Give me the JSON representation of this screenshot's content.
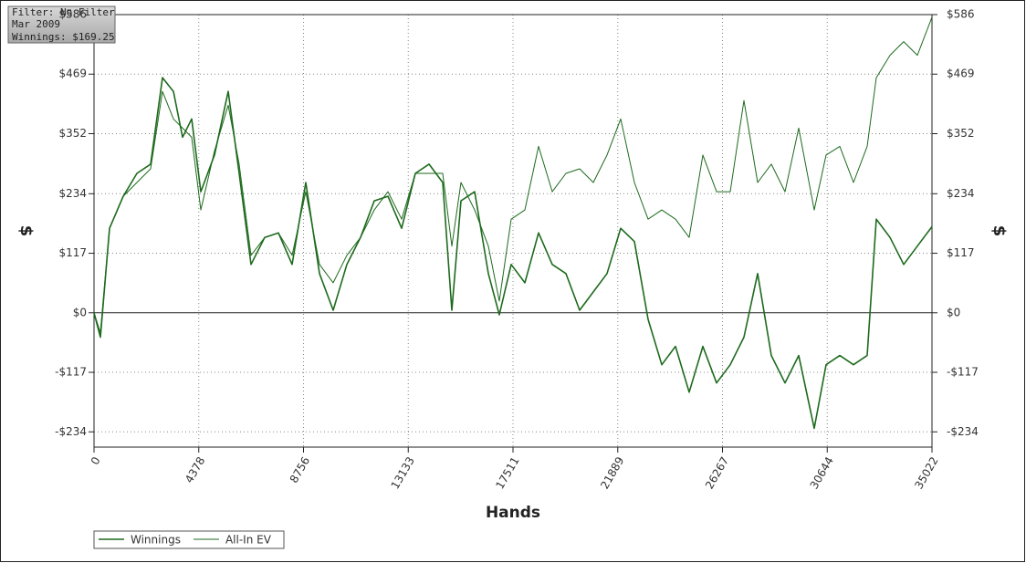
{
  "chart_data": {
    "type": "line",
    "info": [
      "Filter: No Filter",
      "Mar 2009",
      "Winnings: $169.25"
    ],
    "xlabel": "Hands",
    "ylabel": "$",
    "y2label": "$",
    "x": [
      0,
      267,
      649,
      1221,
      1793,
      2366,
      2861,
      3319,
      3700,
      4082,
      4463,
      5036,
      5608,
      6066,
      6562,
      7134,
      7706,
      8279,
      8851,
      9423,
      9995,
      10568,
      11140,
      11712,
      12284,
      12857,
      13429,
      14001,
      14573,
      14955,
      15336,
      15909,
      16481,
      16939,
      17434,
      18007,
      18579,
      19151,
      19723,
      20296,
      20868,
      21440,
      22013,
      22585,
      23157,
      23729,
      24302,
      24874,
      25446,
      26018,
      26591,
      27163,
      27735,
      28307,
      28880,
      29452,
      30101,
      30596,
      31168,
      31740,
      32313,
      32694,
      33267,
      33839,
      34411,
      35022
    ],
    "series": [
      {
        "name": "Winnings",
        "color": "#1d6a1d",
        "width": 1.6,
        "values": [
          0,
          -48,
          166,
          229,
          274,
          292,
          462,
          435,
          345,
          381,
          238,
          310,
          435,
          274,
          95,
          148,
          157,
          95,
          256,
          77,
          5,
          95,
          148,
          220,
          229,
          166,
          274,
          292,
          256,
          5,
          220,
          238,
          77,
          -4,
          95,
          59,
          157,
          95,
          77,
          5,
          41,
          77,
          166,
          140,
          -13,
          -102,
          -66,
          -156,
          -66,
          -138,
          -102,
          -48,
          77,
          -84,
          -138,
          -84,
          -227,
          -102,
          -84,
          -102,
          -84,
          184,
          148,
          95,
          131,
          169.25
        ]
      },
      {
        "name": "All-In EV",
        "color": "#1d6a1d",
        "width": 1,
        "values": [
          0,
          -39,
          166,
          229,
          256,
          283,
          435,
          381,
          363,
          345,
          202,
          318,
          408,
          292,
          113,
          148,
          157,
          113,
          238,
          95,
          59,
          113,
          148,
          202,
          238,
          184,
          274,
          274,
          274,
          131,
          256,
          202,
          131,
          23,
          184,
          202,
          327,
          238,
          274,
          283,
          256,
          310,
          381,
          256,
          184,
          202,
          184,
          148,
          310,
          238,
          238,
          417,
          256,
          292,
          238,
          363,
          202,
          310,
          327,
          256,
          327,
          462,
          506,
          533,
          506,
          581
        ]
      }
    ],
    "xlim": [
      0,
      35022
    ],
    "xticks": [
      0,
      4378,
      8756,
      13133,
      17511,
      21889,
      26267,
      30644,
      35022
    ],
    "ylim": [
      -264,
      586
    ],
    "yticks": [
      {
        "value": -234,
        "label": "-$234"
      },
      {
        "value": -117,
        "label": "-$117"
      },
      {
        "value": 0,
        "label": "$0"
      },
      {
        "value": 117,
        "label": "$117"
      },
      {
        "value": 234,
        "label": "$234"
      },
      {
        "value": 352,
        "label": "$352"
      },
      {
        "value": 469,
        "label": "$469"
      },
      {
        "value": 586,
        "label": "$586"
      }
    ],
    "grid": true,
    "legend": "bottom-left"
  }
}
